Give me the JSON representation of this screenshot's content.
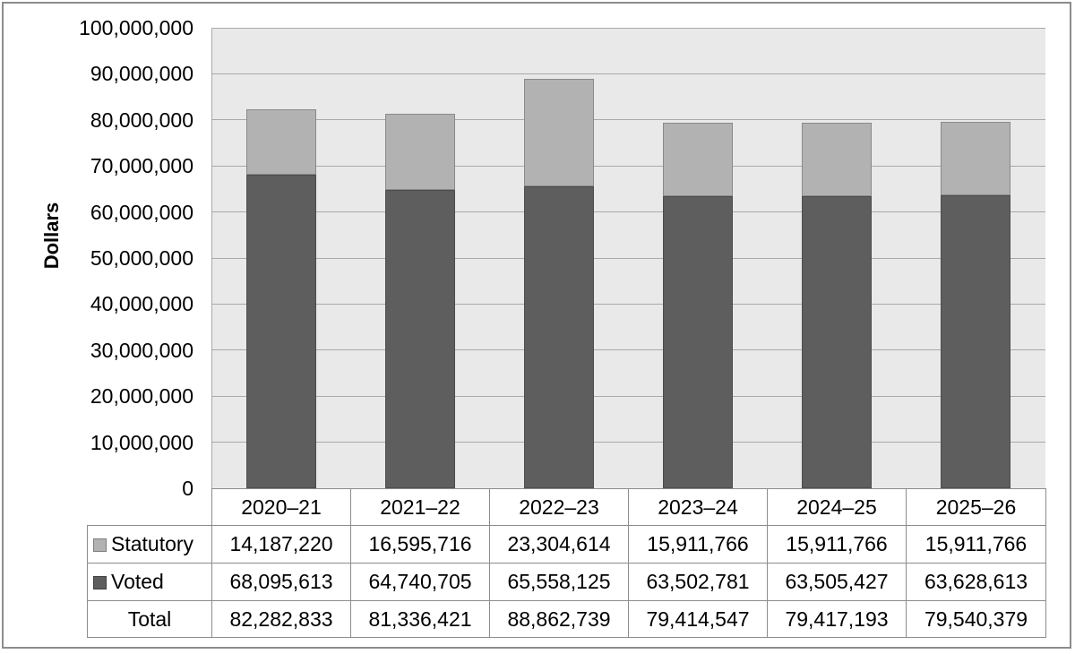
{
  "chart_data": {
    "type": "bar",
    "stacked": true,
    "title": "",
    "xlabel": "",
    "ylabel": "Dollars",
    "ylim": [
      0,
      100000000
    ],
    "ytick_step": 10000000,
    "ytick_labels": [
      "100,000,000",
      "90,000,000",
      "80,000,000",
      "70,000,000",
      "60,000,000",
      "50,000,000",
      "40,000,000",
      "30,000,000",
      "20,000,000",
      "10,000,000",
      "0"
    ],
    "grid": true,
    "legend_position": "table-below",
    "plot_bg_color": "#e9e9e9",
    "gridline_color": "#a9a9a9",
    "categories": [
      "2020–21",
      "2021–22",
      "2022–23",
      "2023–24",
      "2024–25",
      "2025–26"
    ],
    "series": [
      {
        "name": "Statutory",
        "color": "#b2b2b2",
        "border_color": "#8a8a8a",
        "values": [
          14187220,
          16595716,
          23304614,
          15911766,
          15911766,
          15911766
        ]
      },
      {
        "name": "Voted",
        "color": "#5e5e5e",
        "border_color": "#4d4d4d",
        "values": [
          68095613,
          64740705,
          65558125,
          63502781,
          63505427,
          63628613
        ]
      }
    ],
    "totals": [
      82282833,
      81336421,
      88862739,
      79414547,
      79417193,
      79540379
    ]
  },
  "table": {
    "year_headers": [
      "2020–21",
      "2021–22",
      "2022–23",
      "2023–24",
      "2024–25",
      "2025–26"
    ],
    "rows": [
      {
        "label": "Statutory",
        "swatch_color": "#b2b2b2",
        "swatch_border": "#7f7f7f",
        "values": [
          "14,187,220",
          "16,595,716",
          "23,304,614",
          "15,911,766",
          "15,911,766",
          "15,911,766"
        ]
      },
      {
        "label": "Voted",
        "swatch_color": "#5e5e5e",
        "swatch_border": "#404040",
        "values": [
          "68,095,613",
          "64,740,705",
          "65,558,125",
          "63,502,781",
          "63,505,427",
          "63,628,613"
        ]
      },
      {
        "label": "Total",
        "swatch_color": null,
        "swatch_border": null,
        "values": [
          "82,282,833",
          "81,336,421",
          "88,862,739",
          "79,414,547",
          "79,417,193",
          "79,540,379"
        ]
      }
    ]
  }
}
